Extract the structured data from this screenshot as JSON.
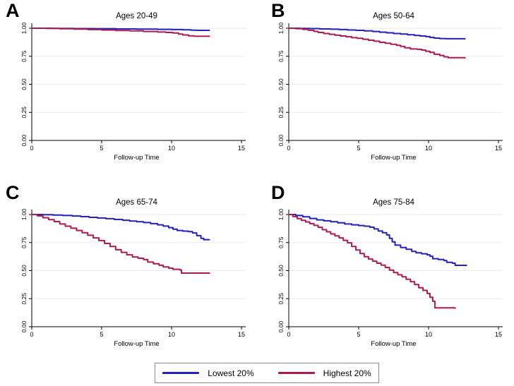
{
  "colors": {
    "lowest": "#2121bd",
    "highest": "#ad1a52",
    "grid": "#e9eaf2",
    "axis": "#000000",
    "text": "#000000"
  },
  "legend": {
    "items": [
      {
        "label": "Lowest 20%",
        "color_key": "lowest"
      },
      {
        "label": "Highest 20%",
        "color_key": "highest"
      }
    ]
  },
  "chart_data": [
    {
      "type": "line",
      "panel_label": "A",
      "title": "Ages 20-49",
      "xlabel": "Follow-up Time",
      "xlim": [
        0,
        15
      ],
      "ylim": [
        0,
        1
      ],
      "xticks": [
        0,
        5,
        10,
        15
      ],
      "yticks": [
        "0.00",
        "0.25",
        "0.50",
        "0.75",
        "1.00"
      ],
      "step": true,
      "grid": true,
      "series": [
        {
          "name": "Lowest 20%",
          "color_key": "lowest",
          "points": [
            [
              0,
              1.0
            ],
            [
              1.5,
              0.999
            ],
            [
              3,
              0.997
            ],
            [
              4.5,
              0.996
            ],
            [
              6,
              0.994
            ],
            [
              7.5,
              0.992
            ],
            [
              9,
              0.99
            ],
            [
              10,
              0.988
            ],
            [
              10.8,
              0.986
            ],
            [
              11.4,
              0.983
            ],
            [
              11.8,
              0.981
            ],
            [
              12.7,
              0.981
            ]
          ]
        },
        {
          "name": "Highest 20%",
          "color_key": "highest",
          "points": [
            [
              0,
              1.0
            ],
            [
              1,
              0.998
            ],
            [
              2,
              0.995
            ],
            [
              3,
              0.992
            ],
            [
              4,
              0.988
            ],
            [
              5,
              0.984
            ],
            [
              6,
              0.98
            ],
            [
              7,
              0.976
            ],
            [
              8,
              0.971
            ],
            [
              9,
              0.966
            ],
            [
              9.6,
              0.962
            ],
            [
              10.1,
              0.957
            ],
            [
              10.5,
              0.948
            ],
            [
              10.8,
              0.94
            ],
            [
              11.2,
              0.932
            ],
            [
              11.6,
              0.928
            ],
            [
              12.7,
              0.928
            ]
          ]
        }
      ]
    },
    {
      "type": "line",
      "panel_label": "B",
      "title": "Ages 50-64",
      "xlabel": "Follow-up Time",
      "xlim": [
        0,
        15
      ],
      "ylim": [
        0,
        1
      ],
      "xticks": [
        0,
        5,
        10,
        15
      ],
      "yticks": [
        "0.00",
        "0.25",
        "0.50",
        "0.75",
        "1.00"
      ],
      "step": true,
      "grid": true,
      "series": [
        {
          "name": "Lowest 20%",
          "color_key": "lowest",
          "points": [
            [
              0,
              1.0
            ],
            [
              0.8,
              0.999
            ],
            [
              1.5,
              0.997
            ],
            [
              2.2,
              0.994
            ],
            [
              3,
              0.991
            ],
            [
              3.6,
              0.988
            ],
            [
              4.2,
              0.984
            ],
            [
              4.8,
              0.981
            ],
            [
              5.4,
              0.977
            ],
            [
              6,
              0.971
            ],
            [
              6.5,
              0.965
            ],
            [
              7,
              0.959
            ],
            [
              7.5,
              0.953
            ],
            [
              8,
              0.948
            ],
            [
              8.5,
              0.942
            ],
            [
              9,
              0.936
            ],
            [
              9.4,
              0.931
            ],
            [
              9.8,
              0.925
            ],
            [
              10.1,
              0.918
            ],
            [
              10.4,
              0.912
            ],
            [
              10.8,
              0.908
            ],
            [
              11.2,
              0.906
            ],
            [
              12.6,
              0.905
            ]
          ]
        },
        {
          "name": "Highest 20%",
          "color_key": "highest",
          "points": [
            [
              0,
              1.0
            ],
            [
              0.5,
              0.996
            ],
            [
              1,
              0.99
            ],
            [
              1.4,
              0.982
            ],
            [
              1.8,
              0.972
            ],
            [
              2.1,
              0.962
            ],
            [
              2.5,
              0.953
            ],
            [
              2.9,
              0.946
            ],
            [
              3.3,
              0.938
            ],
            [
              3.7,
              0.931
            ],
            [
              4.1,
              0.924
            ],
            [
              4.5,
              0.916
            ],
            [
              4.9,
              0.91
            ],
            [
              5.3,
              0.902
            ],
            [
              5.7,
              0.893
            ],
            [
              6.1,
              0.884
            ],
            [
              6.5,
              0.874
            ],
            [
              6.9,
              0.866
            ],
            [
              7.3,
              0.857
            ],
            [
              7.7,
              0.847
            ],
            [
              8,
              0.838
            ],
            [
              8.3,
              0.825
            ],
            [
              8.7,
              0.815
            ],
            [
              9.2,
              0.812
            ],
            [
              9.5,
              0.805
            ],
            [
              9.8,
              0.795
            ],
            [
              10.1,
              0.785
            ],
            [
              10.4,
              0.768
            ],
            [
              10.8,
              0.757
            ],
            [
              11.1,
              0.745
            ],
            [
              11.4,
              0.737
            ],
            [
              12.6,
              0.735
            ]
          ]
        }
      ]
    },
    {
      "type": "line",
      "panel_label": "C",
      "title": "Ages 65-74",
      "xlabel": "Follow-up Time",
      "xlim": [
        0,
        15
      ],
      "ylim": [
        0,
        1
      ],
      "xticks": [
        0,
        5,
        10,
        15
      ],
      "yticks": [
        "0.00",
        "0.25",
        "0.50",
        "0.75",
        "1.00"
      ],
      "step": true,
      "grid": true,
      "series": [
        {
          "name": "Lowest 20%",
          "color_key": "lowest",
          "points": [
            [
              0,
              1.0
            ],
            [
              0.8,
              0.999
            ],
            [
              1.5,
              0.995
            ],
            [
              2.2,
              0.991
            ],
            [
              2.9,
              0.987
            ],
            [
              3.5,
              0.981
            ],
            [
              4.1,
              0.975
            ],
            [
              4.7,
              0.969
            ],
            [
              5.3,
              0.963
            ],
            [
              5.9,
              0.956
            ],
            [
              6.5,
              0.949
            ],
            [
              7,
              0.942
            ],
            [
              7.5,
              0.935
            ],
            [
              8,
              0.928
            ],
            [
              8.5,
              0.919
            ],
            [
              9,
              0.908
            ],
            [
              9.4,
              0.897
            ],
            [
              9.8,
              0.883
            ],
            [
              10.1,
              0.87
            ],
            [
              10.4,
              0.858
            ],
            [
              10.8,
              0.852
            ],
            [
              11.2,
              0.848
            ],
            [
              11.5,
              0.836
            ],
            [
              11.8,
              0.812
            ],
            [
              12.1,
              0.788
            ],
            [
              12.3,
              0.776
            ],
            [
              12.7,
              0.775
            ]
          ]
        },
        {
          "name": "Highest 20%",
          "color_key": "highest",
          "points": [
            [
              0,
              1.0
            ],
            [
              0.4,
              0.988
            ],
            [
              0.8,
              0.972
            ],
            [
              1.2,
              0.955
            ],
            [
              1.6,
              0.937
            ],
            [
              2,
              0.916
            ],
            [
              2.4,
              0.896
            ],
            [
              2.8,
              0.878
            ],
            [
              3.2,
              0.858
            ],
            [
              3.6,
              0.838
            ],
            [
              4,
              0.815
            ],
            [
              4.4,
              0.792
            ],
            [
              4.8,
              0.768
            ],
            [
              5.2,
              0.742
            ],
            [
              5.6,
              0.715
            ],
            [
              6,
              0.686
            ],
            [
              6.4,
              0.663
            ],
            [
              6.8,
              0.641
            ],
            [
              7.2,
              0.622
            ],
            [
              7.6,
              0.61
            ],
            [
              8,
              0.598
            ],
            [
              8.3,
              0.576
            ],
            [
              8.7,
              0.561
            ],
            [
              9.1,
              0.548
            ],
            [
              9.4,
              0.533
            ],
            [
              9.8,
              0.522
            ],
            [
              10.1,
              0.512
            ],
            [
              10.6,
              0.506
            ],
            [
              10.7,
              0.478
            ],
            [
              12.7,
              0.477
            ]
          ]
        }
      ]
    },
    {
      "type": "line",
      "panel_label": "D",
      "title": "Ages 75-84",
      "xlabel": "Follow-up Time",
      "xlim": [
        0,
        15
      ],
      "ylim": [
        0,
        1
      ],
      "xticks": [
        0,
        5,
        10,
        15
      ],
      "yticks": [
        "0.00",
        "0.25",
        "0.50",
        "0.75",
        "1.00"
      ],
      "step": true,
      "grid": true,
      "series": [
        {
          "name": "Lowest 20%",
          "color_key": "lowest",
          "points": [
            [
              0,
              1.0
            ],
            [
              0.5,
              0.991
            ],
            [
              1,
              0.979
            ],
            [
              1.5,
              0.965
            ],
            [
              2,
              0.952
            ],
            [
              2.5,
              0.944
            ],
            [
              3,
              0.936
            ],
            [
              3.5,
              0.926
            ],
            [
              4,
              0.916
            ],
            [
              4.5,
              0.908
            ],
            [
              5,
              0.902
            ],
            [
              5.4,
              0.896
            ],
            [
              5.8,
              0.887
            ],
            [
              6.1,
              0.872
            ],
            [
              6.4,
              0.853
            ],
            [
              6.7,
              0.838
            ],
            [
              7,
              0.818
            ],
            [
              7.2,
              0.788
            ],
            [
              7.4,
              0.757
            ],
            [
              7.6,
              0.727
            ],
            [
              8,
              0.706
            ],
            [
              8.4,
              0.69
            ],
            [
              8.8,
              0.672
            ],
            [
              9.1,
              0.659
            ],
            [
              9.5,
              0.65
            ],
            [
              9.9,
              0.641
            ],
            [
              10.1,
              0.628
            ],
            [
              10.3,
              0.606
            ],
            [
              10.7,
              0.599
            ],
            [
              11.1,
              0.59
            ],
            [
              11.3,
              0.574
            ],
            [
              11.7,
              0.566
            ],
            [
              11.9,
              0.547
            ],
            [
              12.7,
              0.545
            ]
          ]
        },
        {
          "name": "Highest 20%",
          "color_key": "highest",
          "points": [
            [
              0,
              1.0
            ],
            [
              0.3,
              0.982
            ],
            [
              0.6,
              0.964
            ],
            [
              0.9,
              0.948
            ],
            [
              1.2,
              0.934
            ],
            [
              1.5,
              0.919
            ],
            [
              1.8,
              0.903
            ],
            [
              2.1,
              0.886
            ],
            [
              2.4,
              0.865
            ],
            [
              2.7,
              0.846
            ],
            [
              3,
              0.827
            ],
            [
              3.3,
              0.81
            ],
            [
              3.6,
              0.792
            ],
            [
              3.9,
              0.77
            ],
            [
              4.2,
              0.748
            ],
            [
              4.5,
              0.716
            ],
            [
              4.8,
              0.684
            ],
            [
              5.1,
              0.652
            ],
            [
              5.4,
              0.624
            ],
            [
              5.7,
              0.603
            ],
            [
              6,
              0.584
            ],
            [
              6.3,
              0.566
            ],
            [
              6.6,
              0.549
            ],
            [
              6.9,
              0.528
            ],
            [
              7.2,
              0.505
            ],
            [
              7.5,
              0.483
            ],
            [
              7.8,
              0.463
            ],
            [
              8.1,
              0.445
            ],
            [
              8.4,
              0.423
            ],
            [
              8.7,
              0.401
            ],
            [
              9,
              0.376
            ],
            [
              9.3,
              0.348
            ],
            [
              9.6,
              0.324
            ],
            [
              9.9,
              0.296
            ],
            [
              10.1,
              0.262
            ],
            [
              10.3,
              0.227
            ],
            [
              10.45,
              0.168
            ],
            [
              11.9,
              0.165
            ]
          ]
        }
      ]
    }
  ]
}
